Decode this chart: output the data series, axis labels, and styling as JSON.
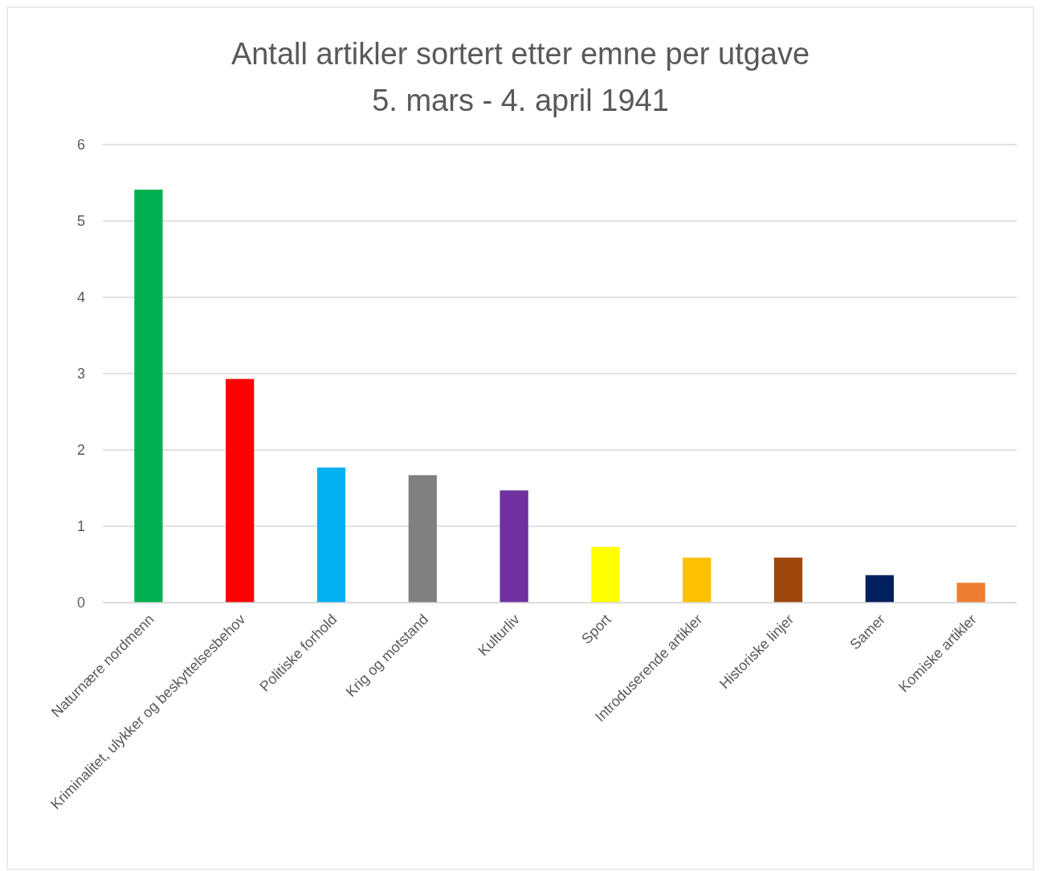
{
  "chart_data": {
    "type": "bar",
    "title": "Antall artikler sortert etter emne per utgave",
    "subtitle": "5. mars - 4. april 1941",
    "categories": [
      "Naturnære nordmenn",
      "Kriminalitet, ulykker og beskyttelsesbehov",
      "Politiske forhold",
      "Krig og motstand",
      "Kulturliv",
      "Sport",
      "Introduserende artikler",
      "Historiske linjer",
      "Samer",
      "Komiske artikler"
    ],
    "values": [
      5.41,
      2.93,
      1.77,
      1.67,
      1.47,
      0.73,
      0.59,
      0.59,
      0.36,
      0.26
    ],
    "colors": [
      "#00b050",
      "#ff0000",
      "#00b0f0",
      "#808080",
      "#7030a0",
      "#ffff00",
      "#ffc000",
      "#9e480e",
      "#002060",
      "#ed7d31"
    ],
    "ylim": [
      0,
      6
    ],
    "yticks": [
      0,
      1,
      2,
      3,
      4,
      5,
      6
    ],
    "grid": "y"
  }
}
